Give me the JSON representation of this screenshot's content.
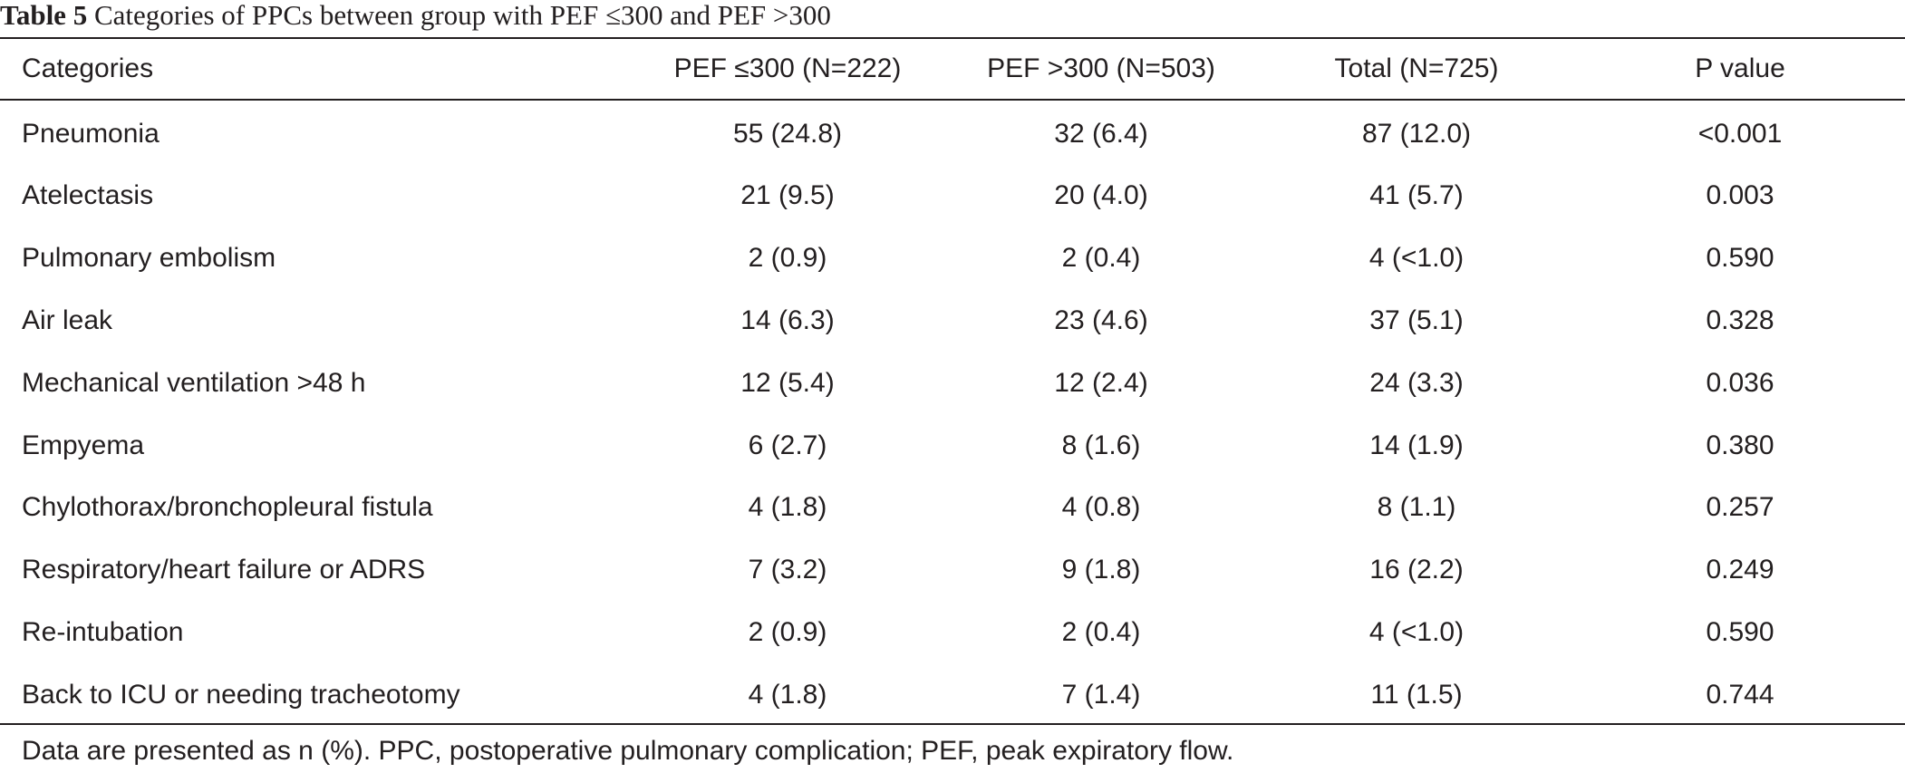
{
  "caption": {
    "label": "Table 5",
    "text": "Categories of PPCs between group with PEF ≤300 and PEF >300"
  },
  "table": {
    "headers": [
      "Categories",
      "PEF ≤300 (N=222)",
      "PEF >300 (N=503)",
      "Total (N=725)",
      "P value"
    ],
    "rows": [
      [
        "Pneumonia",
        "55 (24.8)",
        "32 (6.4)",
        "87 (12.0)",
        "<0.001"
      ],
      [
        "Atelectasis",
        "21 (9.5)",
        "20 (4.0)",
        "41 (5.7)",
        "0.003"
      ],
      [
        "Pulmonary embolism",
        "2 (0.9)",
        "2 (0.4)",
        "4 (<1.0)",
        "0.590"
      ],
      [
        "Air leak",
        "14 (6.3)",
        "23 (4.6)",
        "37 (5.1)",
        "0.328"
      ],
      [
        "Mechanical ventilation >48 h",
        "12 (5.4)",
        "12 (2.4)",
        "24 (3.3)",
        "0.036"
      ],
      [
        "Empyema",
        "6 (2.7)",
        "8 (1.6)",
        "14 (1.9)",
        "0.380"
      ],
      [
        "Chylothorax/bronchopleural fistula",
        "4 (1.8)",
        "4 (0.8)",
        "8 (1.1)",
        "0.257"
      ],
      [
        "Respiratory/heart failure or ADRS",
        "7 (3.2)",
        "9 (1.8)",
        "16 (2.2)",
        "0.249"
      ],
      [
        "Re-intubation",
        "2 (0.9)",
        "2 (0.4)",
        "4 (<1.0)",
        "0.590"
      ],
      [
        "Back to ICU or needing tracheotomy",
        "4 (1.8)",
        "7 (1.4)",
        "11 (1.5)",
        "0.744"
      ]
    ]
  },
  "footnote": "Data are presented as n (%). PPC, postoperative pulmonary complication; PEF, peak expiratory flow."
}
